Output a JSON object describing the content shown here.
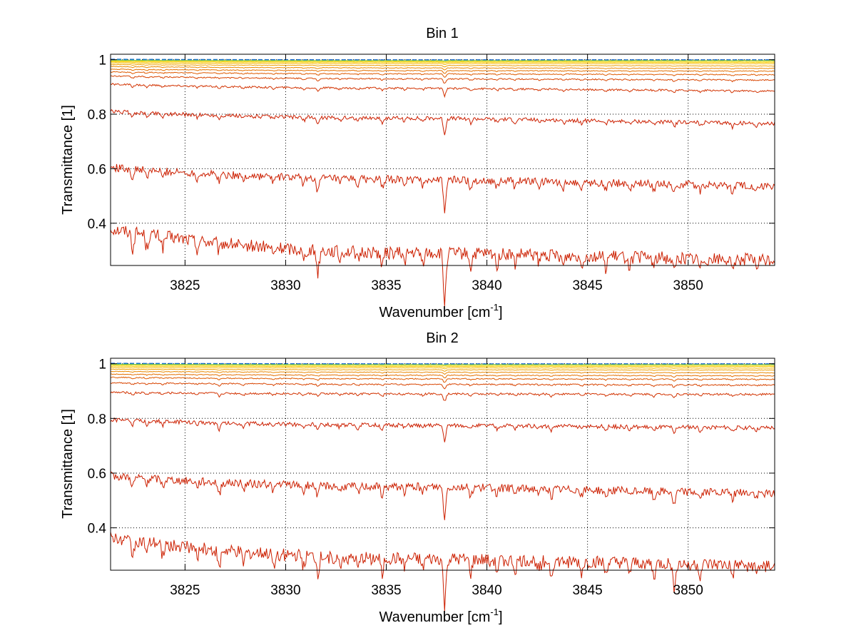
{
  "chart_data": [
    {
      "type": "line",
      "title": "Bin 1",
      "xlabel": "Wavenumber [cm",
      "xlabel_sup": "-1",
      "xlabel_end": "]",
      "ylabel": "Transmittance [1]",
      "xlim": [
        3821.3,
        3854.3
      ],
      "ylim": [
        0.245,
        1.02
      ],
      "x_ticks": [
        3825,
        3830,
        3835,
        3840,
        3845,
        3850
      ],
      "x_tick_labels": [
        "3825",
        "3830",
        "3835",
        "3840",
        "3845",
        "3850"
      ],
      "y_ticks": [
        0.4,
        0.6,
        0.8,
        1
      ],
      "y_tick_labels": [
        "0.4",
        "0.6",
        "0.8",
        "1"
      ],
      "grid": true,
      "line_colors": [
        "#cc1f00",
        "#cc1f00",
        "#cc1f00",
        "#d23200",
        "#d84400",
        "#de5a00",
        "#e47000",
        "#ea8800",
        "#f0a000",
        "#f6b800",
        "#f8cc00",
        "#e8d400",
        "#7fc84a",
        "#1ea0a0",
        "#1460d0"
      ],
      "series": [
        {
          "start": 0.38,
          "mid": 0.29,
          "end": 0.265
        },
        {
          "start": 0.605,
          "mid": 0.56,
          "end": 0.535
        },
        {
          "start": 0.81,
          "mid": 0.785,
          "end": 0.765
        },
        {
          "start": 0.91,
          "mid": 0.895,
          "end": 0.885
        },
        {
          "start": 0.94,
          "mid": 0.93,
          "end": 0.925
        },
        {
          "start": 0.955,
          "mid": 0.948,
          "end": 0.945
        },
        {
          "start": 0.965,
          "mid": 0.96,
          "end": 0.958
        },
        {
          "start": 0.975,
          "mid": 0.97,
          "end": 0.968
        },
        {
          "start": 0.982,
          "mid": 0.979,
          "end": 0.977
        },
        {
          "start": 0.988,
          "mid": 0.986,
          "end": 0.985
        },
        {
          "start": 0.992,
          "mid": 0.991,
          "end": 0.99
        },
        {
          "start": 0.995,
          "mid": 0.994,
          "end": 0.994
        },
        {
          "start": 0.998,
          "mid": 0.997,
          "end": 0.997
        },
        {
          "start": 1.0,
          "mid": 0.999,
          "end": 0.999
        },
        {
          "start": 1.002,
          "mid": 1.0,
          "end": 1.0
        }
      ],
      "absorption_lines": [
        {
          "x": 3822.4,
          "depth": 0.03
        },
        {
          "x": 3823.1,
          "depth": 0.025
        },
        {
          "x": 3823.9,
          "depth": 0.02
        },
        {
          "x": 3825.6,
          "depth": 0.015
        },
        {
          "x": 3826.7,
          "depth": 0.018
        },
        {
          "x": 3827.9,
          "depth": 0.015
        },
        {
          "x": 3829.4,
          "depth": 0.015
        },
        {
          "x": 3830.9,
          "depth": 0.02
        },
        {
          "x": 3831.6,
          "depth": 0.04
        },
        {
          "x": 3832.7,
          "depth": 0.015
        },
        {
          "x": 3833.6,
          "depth": 0.018
        },
        {
          "x": 3834.8,
          "depth": 0.025
        },
        {
          "x": 3835.9,
          "depth": 0.015
        },
        {
          "x": 3836.8,
          "depth": 0.018
        },
        {
          "x": 3837.9,
          "depth": 0.09
        },
        {
          "x": 3839.2,
          "depth": 0.025
        },
        {
          "x": 3840.5,
          "depth": 0.02
        },
        {
          "x": 3841.4,
          "depth": 0.018
        },
        {
          "x": 3842.6,
          "depth": 0.015
        },
        {
          "x": 3843.8,
          "depth": 0.018
        },
        {
          "x": 3844.7,
          "depth": 0.015
        },
        {
          "x": 3845.9,
          "depth": 0.02
        },
        {
          "x": 3847.1,
          "depth": 0.018
        },
        {
          "x": 3848.3,
          "depth": 0.015
        },
        {
          "x": 3849.3,
          "depth": 0.025
        },
        {
          "x": 3850.6,
          "depth": 0.018
        },
        {
          "x": 3852.2,
          "depth": 0.025
        },
        {
          "x": 3853.4,
          "depth": 0.015
        }
      ]
    },
    {
      "type": "line",
      "title": "Bin 2",
      "xlabel": "Wavenumber [cm",
      "xlabel_sup": "-1",
      "xlabel_end": "]",
      "ylabel": "Transmittance [1]",
      "xlim": [
        3821.3,
        3854.3
      ],
      "ylim": [
        0.245,
        1.02
      ],
      "x_ticks": [
        3825,
        3830,
        3835,
        3840,
        3845,
        3850
      ],
      "x_tick_labels": [
        "3825",
        "3830",
        "3835",
        "3840",
        "3845",
        "3850"
      ],
      "y_ticks": [
        0.4,
        0.6,
        0.8,
        1
      ],
      "y_tick_labels": [
        "0.4",
        "0.6",
        "0.8",
        "1"
      ],
      "grid": true,
      "line_colors": [
        "#cc1f00",
        "#cc1f00",
        "#cc1f00",
        "#d23200",
        "#d84400",
        "#de5a00",
        "#e47000",
        "#ea8800",
        "#f0a000",
        "#f6b800",
        "#f8cc00",
        "#e8d400",
        "#7fc84a",
        "#1ea0a0",
        "#1460d0"
      ],
      "series": [
        {
          "start": 0.365,
          "mid": 0.285,
          "end": 0.26
        },
        {
          "start": 0.59,
          "mid": 0.55,
          "end": 0.525
        },
        {
          "start": 0.795,
          "mid": 0.775,
          "end": 0.765
        },
        {
          "start": 0.895,
          "mid": 0.89,
          "end": 0.888
        },
        {
          "start": 0.93,
          "mid": 0.925,
          "end": 0.922
        },
        {
          "start": 0.95,
          "mid": 0.945,
          "end": 0.943
        },
        {
          "start": 0.962,
          "mid": 0.958,
          "end": 0.956
        },
        {
          "start": 0.972,
          "mid": 0.969,
          "end": 0.967
        },
        {
          "start": 0.98,
          "mid": 0.978,
          "end": 0.977
        },
        {
          "start": 0.986,
          "mid": 0.985,
          "end": 0.984
        },
        {
          "start": 0.991,
          "mid": 0.99,
          "end": 0.99
        },
        {
          "start": 0.995,
          "mid": 0.994,
          "end": 0.994
        },
        {
          "start": 0.998,
          "mid": 0.997,
          "end": 0.997
        },
        {
          "start": 1.0,
          "mid": 0.999,
          "end": 0.999
        },
        {
          "start": 1.002,
          "mid": 1.0,
          "end": 1.0
        }
      ],
      "absorption_lines": [
        {
          "x": 3822.4,
          "depth": 0.025
        },
        {
          "x": 3823.1,
          "depth": 0.02
        },
        {
          "x": 3823.9,
          "depth": 0.02
        },
        {
          "x": 3825.6,
          "depth": 0.015
        },
        {
          "x": 3826.7,
          "depth": 0.035
        },
        {
          "x": 3827.9,
          "depth": 0.02
        },
        {
          "x": 3829.4,
          "depth": 0.02
        },
        {
          "x": 3830.9,
          "depth": 0.02
        },
        {
          "x": 3831.6,
          "depth": 0.03
        },
        {
          "x": 3832.7,
          "depth": 0.015
        },
        {
          "x": 3833.6,
          "depth": 0.02
        },
        {
          "x": 3834.8,
          "depth": 0.025
        },
        {
          "x": 3835.9,
          "depth": 0.015
        },
        {
          "x": 3836.8,
          "depth": 0.018
        },
        {
          "x": 3837.9,
          "depth": 0.085
        },
        {
          "x": 3839.2,
          "depth": 0.025
        },
        {
          "x": 3840.5,
          "depth": 0.02
        },
        {
          "x": 3841.4,
          "depth": 0.018
        },
        {
          "x": 3842.6,
          "depth": 0.015
        },
        {
          "x": 3843.2,
          "depth": 0.025
        },
        {
          "x": 3844.7,
          "depth": 0.02
        },
        {
          "x": 3845.9,
          "depth": 0.02
        },
        {
          "x": 3847.1,
          "depth": 0.018
        },
        {
          "x": 3848.3,
          "depth": 0.025
        },
        {
          "x": 3849.3,
          "depth": 0.04
        },
        {
          "x": 3850.6,
          "depth": 0.02
        },
        {
          "x": 3852.2,
          "depth": 0.02
        },
        {
          "x": 3853.4,
          "depth": 0.015
        }
      ]
    }
  ]
}
